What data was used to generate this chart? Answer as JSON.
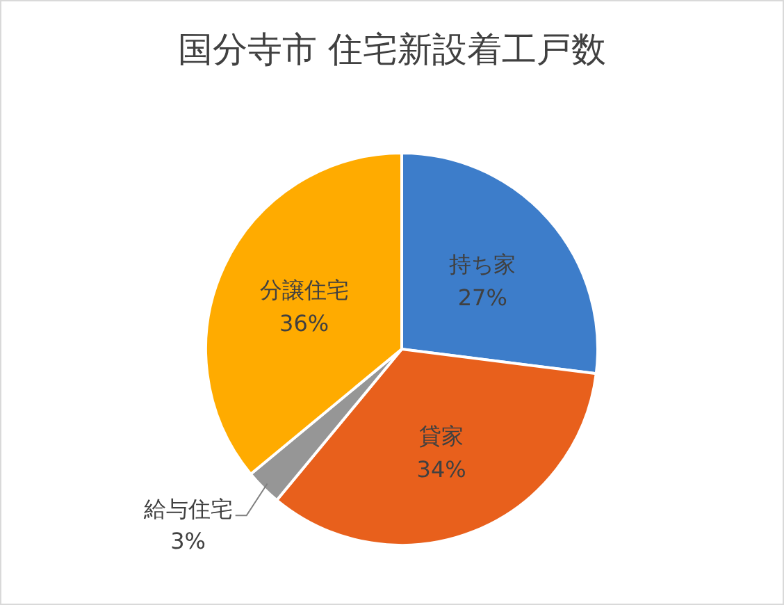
{
  "chart_data": {
    "type": "pie",
    "title": "国分寺市 住宅新設着工戸数",
    "categories": [
      "持ち家",
      "貸家",
      "給与住宅",
      "分譲住宅"
    ],
    "values": [
      27,
      34,
      3,
      36
    ],
    "colors": [
      "#3d7dca",
      "#e8601c",
      "#969696",
      "#ffab00"
    ],
    "value_labels": [
      "27%",
      "34%",
      "3%",
      "36%"
    ]
  }
}
